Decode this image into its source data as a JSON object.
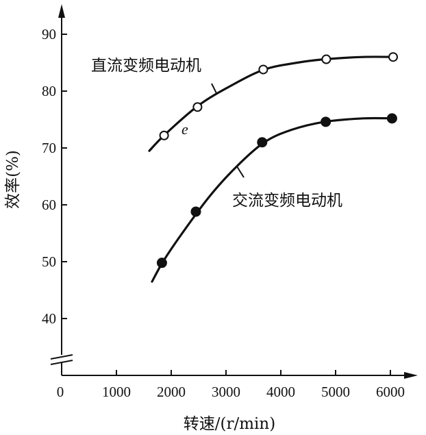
{
  "chart_data": {
    "type": "line",
    "title": "",
    "xlabel": "转速/(r/min)",
    "ylabel": "效率(%)",
    "xlim": [
      0,
      6300
    ],
    "ylim": [
      30,
      95
    ],
    "y_axis_break": true,
    "x_ticks": [
      0,
      1000,
      2000,
      3000,
      4000,
      5000,
      6000
    ],
    "x_tick_labels": [
      "0",
      "1000",
      "2000",
      "3000",
      "4000",
      "5000",
      "6000"
    ],
    "y_ticks": [
      40,
      50,
      60,
      70,
      80,
      90
    ],
    "y_tick_labels": [
      "40",
      "50",
      "60",
      "70",
      "80",
      "90"
    ],
    "grid": false,
    "legend": "none",
    "series": [
      {
        "name": "直流变频电动机",
        "marker": "open-circle",
        "x": [
          1870,
          2480,
          3680,
          4830,
          6050
        ],
        "y": [
          72.2,
          77.2,
          83.8,
          85.6,
          86.0
        ],
        "curve": [
          [
            1600,
            69.5
          ],
          [
            1900,
            72.5
          ],
          [
            2500,
            77.5
          ],
          [
            3100,
            81.0
          ],
          [
            3700,
            83.8
          ],
          [
            4300,
            85.0
          ],
          [
            4800,
            85.6
          ],
          [
            5500,
            86.0
          ],
          [
            6100,
            86.0
          ]
        ]
      },
      {
        "name": "交流变频电动机",
        "marker": "filled-circle",
        "x": [
          1830,
          2450,
          3660,
          4820,
          6030
        ],
        "y": [
          49.8,
          58.8,
          71.0,
          74.6,
          75.2
        ],
        "curve": [
          [
            1650,
            46.5
          ],
          [
            1850,
            50.0
          ],
          [
            2200,
            55.0
          ],
          [
            2700,
            61.5
          ],
          [
            3200,
            66.8
          ],
          [
            3700,
            71.0
          ],
          [
            4200,
            73.2
          ],
          [
            4800,
            74.6
          ],
          [
            5500,
            75.2
          ],
          [
            6050,
            75.2
          ]
        ]
      }
    ],
    "annotations": [
      "e"
    ]
  }
}
